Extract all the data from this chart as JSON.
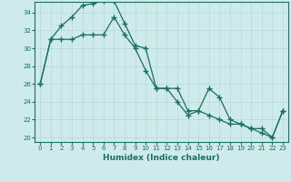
{
  "xlabel": "Humidex (Indice chaleur)",
  "background_color": "#ceeaea",
  "grid_color": "#b8d8d8",
  "line_color": "#1a7060",
  "xlim": [
    -0.5,
    23.5
  ],
  "ylim": [
    19.5,
    35.2
  ],
  "yticks": [
    20,
    22,
    24,
    26,
    28,
    30,
    32,
    34
  ],
  "xticks": [
    0,
    1,
    2,
    3,
    4,
    5,
    6,
    7,
    8,
    9,
    10,
    11,
    12,
    13,
    14,
    15,
    16,
    17,
    18,
    19,
    20,
    21,
    22,
    23
  ],
  "series1_x": [
    0,
    1,
    2,
    3,
    4,
    5,
    6,
    7,
    8,
    9,
    10,
    11,
    12,
    13,
    14,
    15,
    16,
    17,
    18,
    19,
    20,
    21,
    22,
    23
  ],
  "series1_y": [
    26.0,
    31.0,
    32.5,
    33.5,
    34.8,
    35.0,
    35.3,
    35.3,
    32.8,
    30.3,
    30.0,
    25.5,
    25.5,
    25.5,
    23.0,
    23.0,
    25.5,
    24.5,
    22.0,
    21.5,
    21.0,
    20.5,
    20.0,
    23.0
  ],
  "series2_x": [
    0,
    1,
    2,
    3,
    4,
    5,
    6,
    7,
    8,
    9,
    10,
    11,
    12,
    13,
    14,
    15,
    16,
    17,
    18,
    19,
    20,
    21,
    22,
    23
  ],
  "series2_y": [
    26.0,
    31.0,
    31.0,
    31.0,
    31.5,
    31.5,
    31.5,
    33.5,
    31.5,
    30.0,
    27.5,
    25.5,
    25.5,
    24.0,
    22.5,
    23.0,
    22.5,
    22.0,
    21.5,
    21.5,
    21.0,
    21.0,
    20.0,
    23.0
  ],
  "marker_size": 2.0,
  "line_width": 0.9,
  "xlabel_fontsize": 6.5,
  "tick_fontsize": 5.0
}
